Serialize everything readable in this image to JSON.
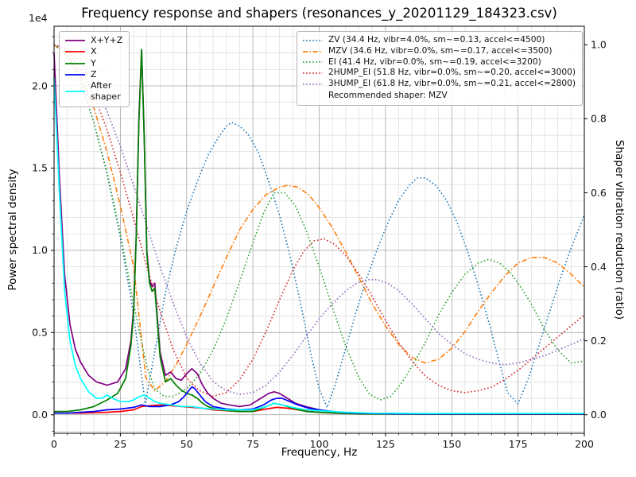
{
  "chart_data": {
    "type": "line",
    "title": "Frequency response and shapers (resonances_y_20201129_184323.csv)",
    "xlabel": "Frequency, Hz",
    "ylabel_left": "Power spectral density",
    "ylabel_right": "Shaper vibration reduction (ratio)",
    "y_offset_text": "1e4",
    "xlim": [
      0,
      200
    ],
    "ylim_left": [
      -0.1125,
      2.3625
    ],
    "ylim_right": [
      -0.05,
      1.05
    ],
    "x_ticks": [
      0,
      25,
      50,
      75,
      100,
      125,
      150,
      175,
      200
    ],
    "x_tick_labels": [
      "0",
      "25",
      "50",
      "75",
      "100",
      "125",
      "150",
      "175",
      "200"
    ],
    "y_ticks_left": [
      0,
      0.5,
      1,
      1.5,
      2
    ],
    "y_tick_labels_left": [
      "0.0",
      "0.5",
      "1.0",
      "1.5",
      "2.0"
    ],
    "y_ticks_right": [
      0,
      0.2,
      0.4,
      0.6,
      0.8,
      1
    ],
    "y_tick_labels_right": [
      "0.0",
      "0.2",
      "0.4",
      "0.6",
      "0.8",
      "1.0"
    ],
    "grid": {
      "major_color": "#a6a6a6",
      "minor_color": "#dcdcdc",
      "x_minor_step": 5,
      "y_minor_step_left": 0.1
    },
    "legend_positions": {
      "psd": "upper left",
      "shapers": "upper right"
    },
    "recommendation": "Recommended shaper: MZV",
    "psd_series": [
      {
        "key": "xyz",
        "name": "X+Y+Z",
        "label": "X+Y+Z",
        "color": "#800080",
        "style": "solid",
        "axis": "left",
        "x": [
          0,
          2,
          4,
          6,
          8,
          10,
          13,
          16,
          20,
          24,
          27,
          29,
          30,
          31,
          32,
          33,
          34,
          35,
          36,
          37,
          38,
          39,
          40,
          42,
          44,
          46,
          48,
          50,
          52,
          54,
          56,
          58,
          60,
          63,
          66,
          70,
          74,
          78,
          81,
          83,
          85,
          88,
          91,
          95,
          100,
          104,
          108,
          112,
          120,
          140,
          170,
          200
        ],
        "y": [
          2.2,
          1.45,
          0.85,
          0.55,
          0.4,
          0.32,
          0.24,
          0.2,
          0.18,
          0.2,
          0.28,
          0.45,
          0.65,
          1.1,
          1.8,
          2.22,
          1.7,
          1.0,
          0.82,
          0.78,
          0.8,
          0.58,
          0.38,
          0.24,
          0.26,
          0.22,
          0.21,
          0.25,
          0.28,
          0.25,
          0.18,
          0.13,
          0.1,
          0.07,
          0.06,
          0.05,
          0.06,
          0.1,
          0.13,
          0.14,
          0.13,
          0.1,
          0.07,
          0.05,
          0.03,
          0.02,
          0.015,
          0.01,
          0.008,
          0.005,
          0.005,
          0.005
        ]
      },
      {
        "key": "x",
        "name": "X",
        "label": "X",
        "color": "#ff0000",
        "style": "solid",
        "axis": "left",
        "x": [
          0,
          5,
          10,
          15,
          20,
          25,
          30,
          33,
          36,
          40,
          44,
          48,
          52,
          56,
          60,
          65,
          70,
          75,
          80,
          84,
          88,
          92,
          96,
          100,
          105,
          110,
          120,
          140,
          170,
          200
        ],
        "y": [
          0.01,
          0.01,
          0.01,
          0.012,
          0.015,
          0.02,
          0.03,
          0.05,
          0.055,
          0.06,
          0.055,
          0.05,
          0.045,
          0.04,
          0.03,
          0.025,
          0.02,
          0.02,
          0.035,
          0.045,
          0.04,
          0.03,
          0.02,
          0.015,
          0.01,
          0.008,
          0.005,
          0.004,
          0.003,
          0.003
        ]
      },
      {
        "key": "y",
        "name": "Y",
        "label": "Y",
        "color": "#008000",
        "style": "solid",
        "axis": "left",
        "x": [
          0,
          5,
          10,
          15,
          20,
          24,
          27,
          29,
          30,
          31,
          32,
          33,
          34,
          35,
          36,
          37,
          38,
          39,
          40,
          42,
          44,
          46,
          48,
          50,
          52,
          54,
          56,
          58,
          60,
          63,
          66,
          70,
          75,
          80,
          83,
          86,
          90,
          95,
          100,
          110,
          120,
          140,
          170,
          200
        ],
        "y": [
          0.02,
          0.02,
          0.03,
          0.05,
          0.09,
          0.13,
          0.22,
          0.42,
          0.62,
          1.08,
          1.78,
          2.22,
          1.68,
          0.98,
          0.8,
          0.75,
          0.77,
          0.55,
          0.35,
          0.2,
          0.22,
          0.18,
          0.15,
          0.13,
          0.12,
          0.1,
          0.07,
          0.05,
          0.04,
          0.03,
          0.025,
          0.02,
          0.02,
          0.05,
          0.07,
          0.06,
          0.04,
          0.02,
          0.015,
          0.008,
          0.005,
          0.004,
          0.004,
          0.004
        ]
      },
      {
        "key": "z",
        "name": "Z",
        "label": "Z",
        "color": "#0000ff",
        "style": "solid",
        "axis": "left",
        "x": [
          0,
          5,
          10,
          15,
          20,
          25,
          30,
          33,
          36,
          40,
          44,
          47,
          49,
          51,
          52,
          53,
          55,
          57,
          60,
          65,
          70,
          75,
          79,
          82,
          84,
          86,
          89,
          92,
          96,
          100,
          105,
          110,
          120,
          140,
          170,
          200
        ],
        "y": [
          0.01,
          0.01,
          0.015,
          0.02,
          0.03,
          0.035,
          0.045,
          0.06,
          0.05,
          0.05,
          0.06,
          0.08,
          0.11,
          0.15,
          0.17,
          0.16,
          0.12,
          0.08,
          0.05,
          0.035,
          0.03,
          0.035,
          0.06,
          0.09,
          0.1,
          0.1,
          0.08,
          0.06,
          0.04,
          0.03,
          0.02,
          0.012,
          0.008,
          0.005,
          0.005,
          0.005
        ]
      },
      {
        "key": "after-shaper",
        "name": "After shaper",
        "label": "After\nshaper",
        "color": "#00ffff",
        "style": "solid",
        "axis": "left",
        "x": [
          0,
          2,
          4,
          6,
          8,
          10,
          13,
          16,
          18,
          20,
          22,
          25,
          28,
          30,
          32,
          34,
          36,
          38,
          40,
          44,
          48,
          52,
          56,
          60,
          65,
          70,
          75,
          80,
          83,
          86,
          90,
          95,
          100,
          110,
          120,
          140,
          170,
          200
        ],
        "y": [
          2.05,
          1.35,
          0.75,
          0.45,
          0.3,
          0.22,
          0.14,
          0.1,
          0.1,
          0.12,
          0.1,
          0.08,
          0.08,
          0.09,
          0.11,
          0.12,
          0.1,
          0.08,
          0.07,
          0.06,
          0.05,
          0.05,
          0.04,
          0.035,
          0.03,
          0.03,
          0.03,
          0.05,
          0.07,
          0.06,
          0.045,
          0.03,
          0.025,
          0.015,
          0.01,
          0.008,
          0.008,
          0.008
        ]
      }
    ],
    "shaper_series": [
      {
        "key": "zv",
        "name": "ZV",
        "label": "ZV (34.4 Hz, vibr=4.0%, sm~=0.13, accel<=4500)",
        "color": "#1f77b4",
        "style": "dotted",
        "axis": "right",
        "x": [
          0,
          5,
          10,
          15,
          20,
          25,
          30,
          34.4,
          38,
          42,
          46,
          50,
          54,
          58,
          62,
          65,
          67,
          70,
          73,
          77,
          81,
          85,
          89,
          93,
          97,
          100,
          103,
          106,
          110,
          114,
          118,
          122,
          126,
          130,
          134,
          137,
          140,
          144,
          148,
          152,
          156,
          160,
          164,
          168,
          171,
          175,
          179,
          183,
          187,
          191,
          195,
          200
        ],
        "y": [
          1.0,
          0.97,
          0.9,
          0.79,
          0.65,
          0.48,
          0.27,
          0.03,
          0.17,
          0.33,
          0.45,
          0.55,
          0.63,
          0.7,
          0.75,
          0.78,
          0.79,
          0.78,
          0.76,
          0.71,
          0.63,
          0.54,
          0.43,
          0.3,
          0.16,
          0.07,
          0.02,
          0.08,
          0.18,
          0.28,
          0.37,
          0.45,
          0.52,
          0.58,
          0.62,
          0.64,
          0.64,
          0.62,
          0.58,
          0.52,
          0.44,
          0.35,
          0.25,
          0.14,
          0.06,
          0.03,
          0.1,
          0.19,
          0.28,
          0.37,
          0.45,
          0.54
        ]
      },
      {
        "key": "mzv",
        "name": "MZV",
        "label": "MZV (34.6 Hz, vibr=0.0%, sm~=0.17, accel<=3500)",
        "color": "#ff7f0e",
        "style": "dashdot",
        "axis": "right",
        "x": [
          0,
          5,
          10,
          15,
          20,
          25,
          30,
          34.6,
          38,
          42,
          46,
          50,
          55,
          60,
          65,
          70,
          75,
          80,
          85,
          88,
          92,
          96,
          100,
          105,
          110,
          115,
          120,
          125,
          130,
          135,
          140,
          145,
          150,
          155,
          160,
          165,
          170,
          175,
          180,
          185,
          190,
          195,
          200
        ],
        "y": [
          1.0,
          0.975,
          0.915,
          0.83,
          0.71,
          0.565,
          0.4,
          0.1,
          0.065,
          0.09,
          0.135,
          0.19,
          0.265,
          0.345,
          0.425,
          0.5,
          0.555,
          0.595,
          0.615,
          0.62,
          0.615,
          0.595,
          0.56,
          0.505,
          0.44,
          0.37,
          0.3,
          0.24,
          0.19,
          0.155,
          0.14,
          0.15,
          0.18,
          0.225,
          0.28,
          0.33,
          0.375,
          0.41,
          0.425,
          0.425,
          0.41,
          0.38,
          0.345
        ]
      },
      {
        "key": "ei",
        "name": "EI",
        "label": "EI (41.4 Hz, vibr=0.0%, sm~=0.19, accel<=3200)",
        "color": "#2ca02c",
        "style": "dotted",
        "axis": "right",
        "x": [
          0,
          5,
          10,
          15,
          20,
          25,
          30,
          35,
          38,
          41.4,
          45,
          50,
          55,
          60,
          65,
          70,
          75,
          79,
          83,
          87,
          91,
          95,
          100,
          105,
          110,
          115,
          119,
          123,
          127,
          131,
          135,
          140,
          145,
          150,
          155,
          160,
          164,
          168,
          172,
          176,
          180,
          185,
          190,
          195,
          200
        ],
        "y": [
          1.0,
          0.97,
          0.9,
          0.79,
          0.655,
          0.49,
          0.3,
          0.13,
          0.07,
          0.05,
          0.05,
          0.07,
          0.11,
          0.175,
          0.26,
          0.36,
          0.465,
          0.545,
          0.6,
          0.6,
          0.565,
          0.5,
          0.4,
          0.29,
          0.185,
          0.1,
          0.055,
          0.04,
          0.05,
          0.085,
          0.13,
          0.195,
          0.27,
          0.33,
          0.38,
          0.41,
          0.42,
          0.41,
          0.385,
          0.345,
          0.3,
          0.23,
          0.175,
          0.14,
          0.145
        ]
      },
      {
        "key": "2hump-ei",
        "name": "2HUMP_EI",
        "label": "2HUMP_EI (51.8 Hz, vibr=0.0%, sm~=0.20, accel<=3000)",
        "color": "#d62728",
        "style": "dotted",
        "axis": "right",
        "x": [
          0,
          5,
          10,
          15,
          20,
          25,
          30,
          35,
          40,
          45,
          50,
          51.8,
          55,
          60,
          65,
          70,
          75,
          80,
          85,
          90,
          94,
          98,
          102,
          106,
          110,
          115,
          120,
          125,
          130,
          135,
          140,
          145,
          150,
          155,
          160,
          165,
          170,
          175,
          180,
          185,
          190,
          195,
          200
        ],
        "y": [
          1.0,
          0.985,
          0.935,
          0.865,
          0.77,
          0.655,
          0.53,
          0.4,
          0.28,
          0.175,
          0.1,
          0.085,
          0.065,
          0.05,
          0.06,
          0.095,
          0.15,
          0.225,
          0.31,
          0.39,
          0.44,
          0.47,
          0.475,
          0.46,
          0.43,
          0.38,
          0.32,
          0.255,
          0.195,
          0.145,
          0.105,
          0.08,
          0.065,
          0.06,
          0.065,
          0.075,
          0.095,
          0.12,
          0.15,
          0.18,
          0.21,
          0.24,
          0.27
        ]
      },
      {
        "key": "3hump-ei",
        "name": "3HUMP_EI",
        "label": "3HUMP_EI (61.8 Hz, vibr=0.0%, sm~=0.21, accel<=2800)",
        "color": "#9467bd",
        "style": "dotted",
        "axis": "right",
        "x": [
          0,
          5,
          10,
          15,
          20,
          25,
          30,
          35,
          40,
          45,
          50,
          55,
          60,
          61.8,
          65,
          70,
          75,
          80,
          85,
          90,
          95,
          100,
          105,
          110,
          114,
          118,
          122,
          126,
          130,
          135,
          140,
          145,
          150,
          155,
          160,
          165,
          170,
          175,
          180,
          185,
          190,
          195,
          200
        ],
        "y": [
          1.0,
          0.99,
          0.955,
          0.895,
          0.82,
          0.725,
          0.62,
          0.51,
          0.4,
          0.3,
          0.21,
          0.14,
          0.09,
          0.08,
          0.065,
          0.055,
          0.06,
          0.08,
          0.115,
          0.16,
          0.21,
          0.26,
          0.3,
          0.335,
          0.355,
          0.365,
          0.365,
          0.355,
          0.335,
          0.3,
          0.26,
          0.22,
          0.19,
          0.165,
          0.15,
          0.14,
          0.135,
          0.14,
          0.15,
          0.16,
          0.175,
          0.19,
          0.205
        ]
      }
    ]
  }
}
